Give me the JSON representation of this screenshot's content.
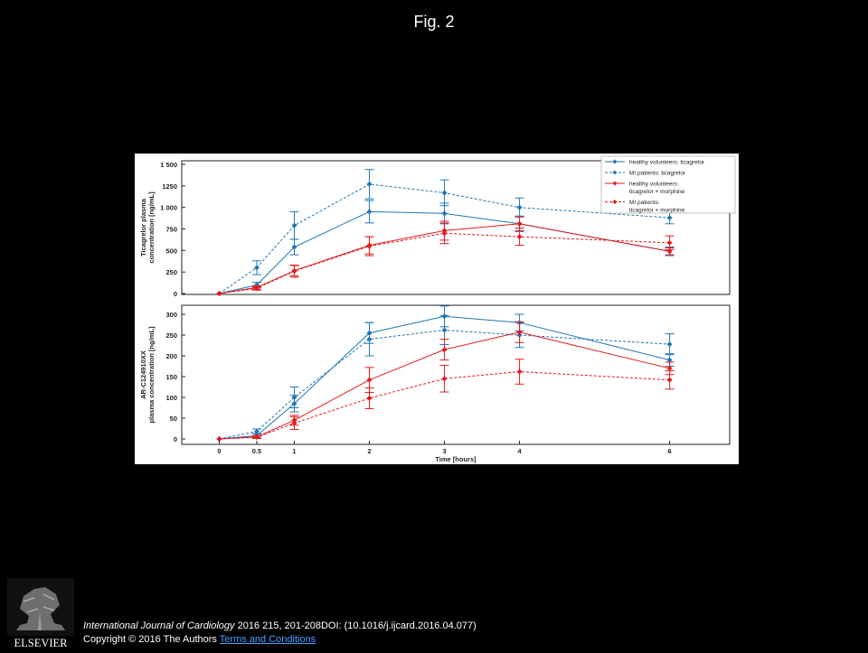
{
  "slide": {
    "title": "Fig. 2",
    "citation": {
      "journal": "International Journal of Cardiology",
      "details": " 2016 215, 201-208DOI: (10.1016/j.ijcard.2016.04.077)",
      "copyright": "Copyright © 2016 The Authors",
      "terms_link": "Terms and Conditions"
    },
    "logo_text": "ELSEVIER"
  },
  "colors": {
    "blue": "#1f77b4",
    "red": "#e31a1c",
    "background": "#000000",
    "link": "#4aa3ff"
  },
  "chart_data": [
    {
      "type": "line",
      "ylabel": [
        "Ticagrelor  plasma",
        "concentration [ng/mL]"
      ],
      "ylim": [
        0,
        1500
      ],
      "yticks": [
        {
          "v": 0,
          "label": "0"
        },
        {
          "v": 250,
          "label": "250"
        },
        {
          "v": 500,
          "label": "500"
        },
        {
          "v": 750,
          "label": "750"
        },
        {
          "v": 1000,
          "label": "1 000"
        },
        {
          "v": 1250,
          "label": "1250"
        },
        {
          "v": 1500,
          "label": "1 500"
        }
      ],
      "x": [
        0,
        0.5,
        1,
        2,
        3,
        4,
        6
      ],
      "series": [
        {
          "name": "healthy volunteers: ticagrelor",
          "color": "#1f77b4",
          "dash": false,
          "values": [
            0,
            100,
            540,
            950,
            930,
            810,
            490
          ],
          "err": [
            0,
            30,
            90,
            130,
            120,
            90,
            50
          ]
        },
        {
          "name": "MI patients: ticagrelor",
          "color": "#1f77b4",
          "dash": true,
          "values": [
            0,
            300,
            790,
            1270,
            1170,
            1000,
            880
          ],
          "err": [
            0,
            80,
            160,
            170,
            150,
            110,
            70
          ]
        },
        {
          "name": "healthy volunteers: ticagrelor + morphine",
          "color": "#e31a1c",
          "dash": false,
          "values": [
            0,
            70,
            265,
            560,
            730,
            810,
            490
          ],
          "err": [
            0,
            20,
            60,
            100,
            110,
            80,
            40
          ]
        },
        {
          "name": "MI patients: ticagrelor + morphine",
          "color": "#e31a1c",
          "dash": true,
          "values": [
            0,
            60,
            260,
            550,
            700,
            660,
            590
          ],
          "err": [
            0,
            20,
            70,
            110,
            120,
            100,
            80
          ]
        }
      ],
      "legend": {
        "placement": "top-right",
        "entries": [
          {
            "lines": [
              "healthy volunteers: ticagrelor"
            ],
            "color": "#1f77b4",
            "dash": false
          },
          {
            "lines": [
              "MI patients: ticagrelor"
            ],
            "color": "#1f77b4",
            "dash": true
          },
          {
            "lines": [
              "healthy volunteers:",
              "ticagrelor + morphine"
            ],
            "color": "#e31a1c",
            "dash": false
          },
          {
            "lines": [
              "MI patients:",
              "ticagrelor + morphine"
            ],
            "color": "#e31a1c",
            "dash": true
          }
        ]
      }
    },
    {
      "type": "line",
      "ylabel": [
        "AR-C124910XX",
        "plasma concentration [ng/mL]"
      ],
      "xlabel": "Time [hours]",
      "ylim": [
        0,
        300
      ],
      "yticks": [
        {
          "v": 0,
          "label": "0"
        },
        {
          "v": 50,
          "label": "50"
        },
        {
          "v": 100,
          "label": "100"
        },
        {
          "v": 150,
          "label": "150"
        },
        {
          "v": 200,
          "label": "200"
        },
        {
          "v": 250,
          "label": "250"
        },
        {
          "v": 300,
          "label": "300"
        }
      ],
      "xticks": [
        {
          "v": 0,
          "label": "0"
        },
        {
          "v": 0.5,
          "label": "0.5"
        },
        {
          "v": 1,
          "label": "1"
        },
        {
          "v": 2,
          "label": "2"
        },
        {
          "v": 3,
          "label": "3"
        },
        {
          "v": 4,
          "label": "4"
        },
        {
          "v": 6,
          "label": "6"
        }
      ],
      "x": [
        0,
        0.5,
        1,
        2,
        3,
        4,
        6
      ],
      "series": [
        {
          "name": "healthy volunteers: ticagrelor",
          "color": "#1f77b4",
          "dash": false,
          "values": [
            0,
            8,
            85,
            255,
            295,
            280,
            190
          ],
          "err": [
            0,
            5,
            20,
            25,
            25,
            20,
            15
          ]
        },
        {
          "name": "MI patients: ticagrelor",
          "color": "#1f77b4",
          "dash": true,
          "values": [
            0,
            18,
            100,
            240,
            262,
            250,
            228
          ],
          "err": [
            0,
            6,
            25,
            40,
            35,
            30,
            25
          ]
        },
        {
          "name": "healthy volunteers: ticagrelor + morphine",
          "color": "#e31a1c",
          "dash": false,
          "values": [
            0,
            5,
            45,
            142,
            215,
            257,
            170
          ],
          "err": [
            0,
            3,
            12,
            30,
            25,
            25,
            15
          ]
        },
        {
          "name": "MI patients: ticagrelor + morphine",
          "color": "#e31a1c",
          "dash": true,
          "values": [
            0,
            4,
            38,
            98,
            145,
            162,
            142
          ],
          "err": [
            0,
            3,
            15,
            25,
            32,
            30,
            22
          ]
        }
      ]
    }
  ]
}
